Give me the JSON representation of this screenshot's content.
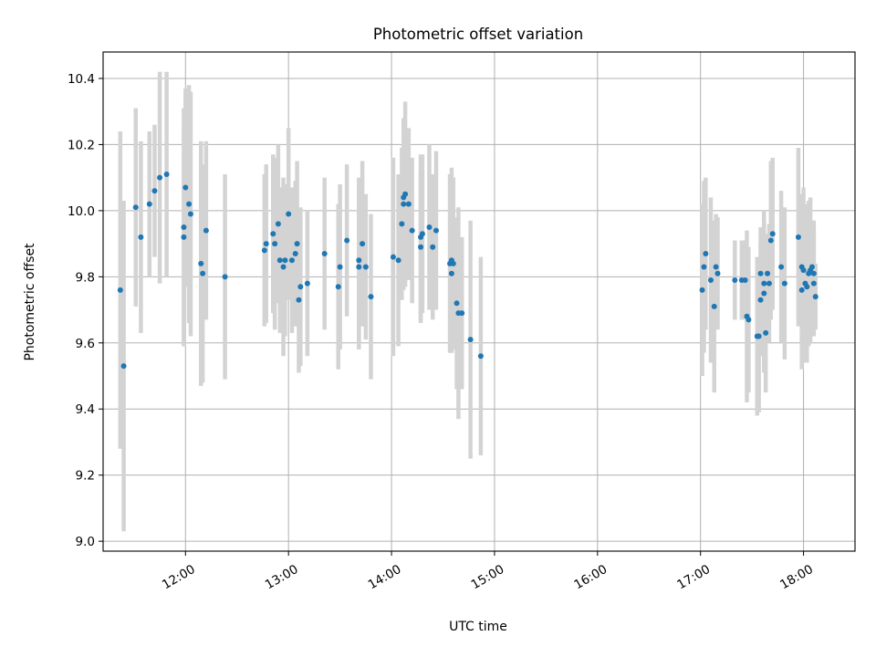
{
  "chart_data": {
    "type": "scatter",
    "title": "Photometric offset variation",
    "xlabel": "UTC time",
    "ylabel": "Photometric offset",
    "xlim": [
      "11:12",
      "18:30"
    ],
    "ylim": [
      8.97,
      10.48
    ],
    "x_ticks": [
      "12:00",
      "13:00",
      "14:00",
      "15:00",
      "16:00",
      "17:00",
      "18:00"
    ],
    "y_ticks": [
      "9.0",
      "9.2",
      "9.4",
      "9.6",
      "9.8",
      "10.0",
      "10.2",
      "10.4"
    ],
    "grid": true,
    "marker_color": "#1f77b4",
    "errorbar_color": "#d3d3d3",
    "points": [
      {
        "x": "11:22",
        "y": 9.76,
        "err": 0.48
      },
      {
        "x": "11:24",
        "y": 9.53,
        "err": 0.5
      },
      {
        "x": "11:31",
        "y": 10.01,
        "err": 0.3
      },
      {
        "x": "11:34",
        "y": 9.92,
        "err": 0.29
      },
      {
        "x": "11:39",
        "y": 10.02,
        "err": 0.22
      },
      {
        "x": "11:42",
        "y": 10.06,
        "err": 0.2
      },
      {
        "x": "11:45",
        "y": 10.1,
        "err": 0.32
      },
      {
        "x": "11:49",
        "y": 10.11,
        "err": 0.31
      },
      {
        "x": "11:59",
        "y": 9.95,
        "err": 0.36
      },
      {
        "x": "11:59",
        "y": 9.92,
        "err": 0.33
      },
      {
        "x": "12:00",
        "y": 10.07,
        "err": 0.3
      },
      {
        "x": "12:02",
        "y": 10.02,
        "err": 0.36
      },
      {
        "x": "12:03",
        "y": 9.99,
        "err": 0.37
      },
      {
        "x": "12:09",
        "y": 9.84,
        "err": 0.37
      },
      {
        "x": "12:10",
        "y": 9.81,
        "err": 0.33
      },
      {
        "x": "12:12",
        "y": 9.94,
        "err": 0.27
      },
      {
        "x": "12:23",
        "y": 9.8,
        "err": 0.31
      },
      {
        "x": "12:46",
        "y": 9.88,
        "err": 0.23
      },
      {
        "x": "12:47",
        "y": 9.9,
        "err": 0.24
      },
      {
        "x": "12:51",
        "y": 9.93,
        "err": 0.24
      },
      {
        "x": "12:52",
        "y": 9.9,
        "err": 0.26
      },
      {
        "x": "12:54",
        "y": 9.96,
        "err": 0.24
      },
      {
        "x": "12:55",
        "y": 9.85,
        "err": 0.22
      },
      {
        "x": "12:57",
        "y": 9.83,
        "err": 0.27
      },
      {
        "x": "12:58",
        "y": 9.85,
        "err": 0.23
      },
      {
        "x": "13:00",
        "y": 9.99,
        "err": 0.26
      },
      {
        "x": "13:02",
        "y": 9.85,
        "err": 0.22
      },
      {
        "x": "13:04",
        "y": 9.87,
        "err": 0.22
      },
      {
        "x": "13:05",
        "y": 9.9,
        "err": 0.25
      },
      {
        "x": "13:06",
        "y": 9.73,
        "err": 0.22
      },
      {
        "x": "13:07",
        "y": 9.77,
        "err": 0.24
      },
      {
        "x": "13:11",
        "y": 9.78,
        "err": 0.22
      },
      {
        "x": "13:21",
        "y": 9.87,
        "err": 0.23
      },
      {
        "x": "13:29",
        "y": 9.77,
        "err": 0.25
      },
      {
        "x": "13:30",
        "y": 9.83,
        "err": 0.25
      },
      {
        "x": "13:34",
        "y": 9.91,
        "err": 0.23
      },
      {
        "x": "13:41",
        "y": 9.85,
        "err": 0.25
      },
      {
        "x": "13:41",
        "y": 9.83,
        "err": 0.25
      },
      {
        "x": "13:43",
        "y": 9.9,
        "err": 0.25
      },
      {
        "x": "13:45",
        "y": 9.83,
        "err": 0.22
      },
      {
        "x": "13:48",
        "y": 9.74,
        "err": 0.25
      },
      {
        "x": "14:01",
        "y": 9.86,
        "err": 0.3
      },
      {
        "x": "14:04",
        "y": 9.85,
        "err": 0.26
      },
      {
        "x": "14:06",
        "y": 9.96,
        "err": 0.23
      },
      {
        "x": "14:07",
        "y": 10.02,
        "err": 0.26
      },
      {
        "x": "14:07",
        "y": 10.04,
        "err": 0.23
      },
      {
        "x": "14:08",
        "y": 10.05,
        "err": 0.28
      },
      {
        "x": "14:10",
        "y": 10.02,
        "err": 0.23
      },
      {
        "x": "14:12",
        "y": 9.94,
        "err": 0.22
      },
      {
        "x": "14:17",
        "y": 9.89,
        "err": 0.23
      },
      {
        "x": "14:17",
        "y": 9.92,
        "err": 0.25
      },
      {
        "x": "14:18",
        "y": 9.93,
        "err": 0.24
      },
      {
        "x": "14:22",
        "y": 9.95,
        "err": 0.25
      },
      {
        "x": "14:24",
        "y": 9.89,
        "err": 0.22
      },
      {
        "x": "14:26",
        "y": 9.94,
        "err": 0.24
      },
      {
        "x": "14:34",
        "y": 9.84,
        "err": 0.27
      },
      {
        "x": "14:35",
        "y": 9.85,
        "err": 0.28
      },
      {
        "x": "14:35",
        "y": 9.81,
        "err": 0.24
      },
      {
        "x": "14:36",
        "y": 9.84,
        "err": 0.26
      },
      {
        "x": "14:38",
        "y": 9.72,
        "err": 0.26
      },
      {
        "x": "14:39",
        "y": 9.69,
        "err": 0.32
      },
      {
        "x": "14:41",
        "y": 9.69,
        "err": 0.23
      },
      {
        "x": "14:46",
        "y": 9.61,
        "err": 0.36
      },
      {
        "x": "14:52",
        "y": 9.56,
        "err": 0.3
      },
      {
        "x": "17:01",
        "y": 9.76,
        "err": 0.26
      },
      {
        "x": "17:02",
        "y": 9.83,
        "err": 0.26
      },
      {
        "x": "17:03",
        "y": 9.87,
        "err": 0.23
      },
      {
        "x": "17:06",
        "y": 9.79,
        "err": 0.25
      },
      {
        "x": "17:08",
        "y": 9.71,
        "err": 0.26
      },
      {
        "x": "17:09",
        "y": 9.83,
        "err": 0.16
      },
      {
        "x": "17:10",
        "y": 9.81,
        "err": 0.17
      },
      {
        "x": "17:20",
        "y": 9.79,
        "err": 0.12
      },
      {
        "x": "17:24",
        "y": 9.79,
        "err": 0.12
      },
      {
        "x": "17:26",
        "y": 9.79,
        "err": 0.12
      },
      {
        "x": "17:27",
        "y": 9.68,
        "err": 0.26
      },
      {
        "x": "17:28",
        "y": 9.67,
        "err": 0.22
      },
      {
        "x": "17:33",
        "y": 9.62,
        "err": 0.24
      },
      {
        "x": "17:34",
        "y": 9.62,
        "err": 0.23
      },
      {
        "x": "17:35",
        "y": 9.81,
        "err": 0.14
      },
      {
        "x": "17:35",
        "y": 9.73,
        "err": 0.17
      },
      {
        "x": "17:37",
        "y": 9.75,
        "err": 0.24
      },
      {
        "x": "17:37",
        "y": 9.78,
        "err": 0.22
      },
      {
        "x": "17:38",
        "y": 9.63,
        "err": 0.18
      },
      {
        "x": "17:39",
        "y": 9.81,
        "err": 0.12
      },
      {
        "x": "17:40",
        "y": 9.78,
        "err": 0.18
      },
      {
        "x": "17:41",
        "y": 9.91,
        "err": 0.24
      },
      {
        "x": "17:42",
        "y": 9.93,
        "err": 0.23
      },
      {
        "x": "17:47",
        "y": 9.83,
        "err": 0.23
      },
      {
        "x": "17:49",
        "y": 9.78,
        "err": 0.23
      },
      {
        "x": "17:57",
        "y": 9.92,
        "err": 0.27
      },
      {
        "x": "17:59",
        "y": 9.83,
        "err": 0.22
      },
      {
        "x": "17:59",
        "y": 9.76,
        "err": 0.24
      },
      {
        "x": "18:00",
        "y": 9.82,
        "err": 0.25
      },
      {
        "x": "18:01",
        "y": 9.78,
        "err": 0.24
      },
      {
        "x": "18:02",
        "y": 9.77,
        "err": 0.23
      },
      {
        "x": "18:03",
        "y": 9.81,
        "err": 0.22
      },
      {
        "x": "18:04",
        "y": 9.82,
        "err": 0.22
      },
      {
        "x": "18:05",
        "y": 9.83,
        "err": 0.14
      },
      {
        "x": "18:06",
        "y": 9.81,
        "err": 0.16
      },
      {
        "x": "18:06",
        "y": 9.78,
        "err": 0.16
      },
      {
        "x": "18:07",
        "y": 9.74,
        "err": 0.1
      }
    ]
  }
}
